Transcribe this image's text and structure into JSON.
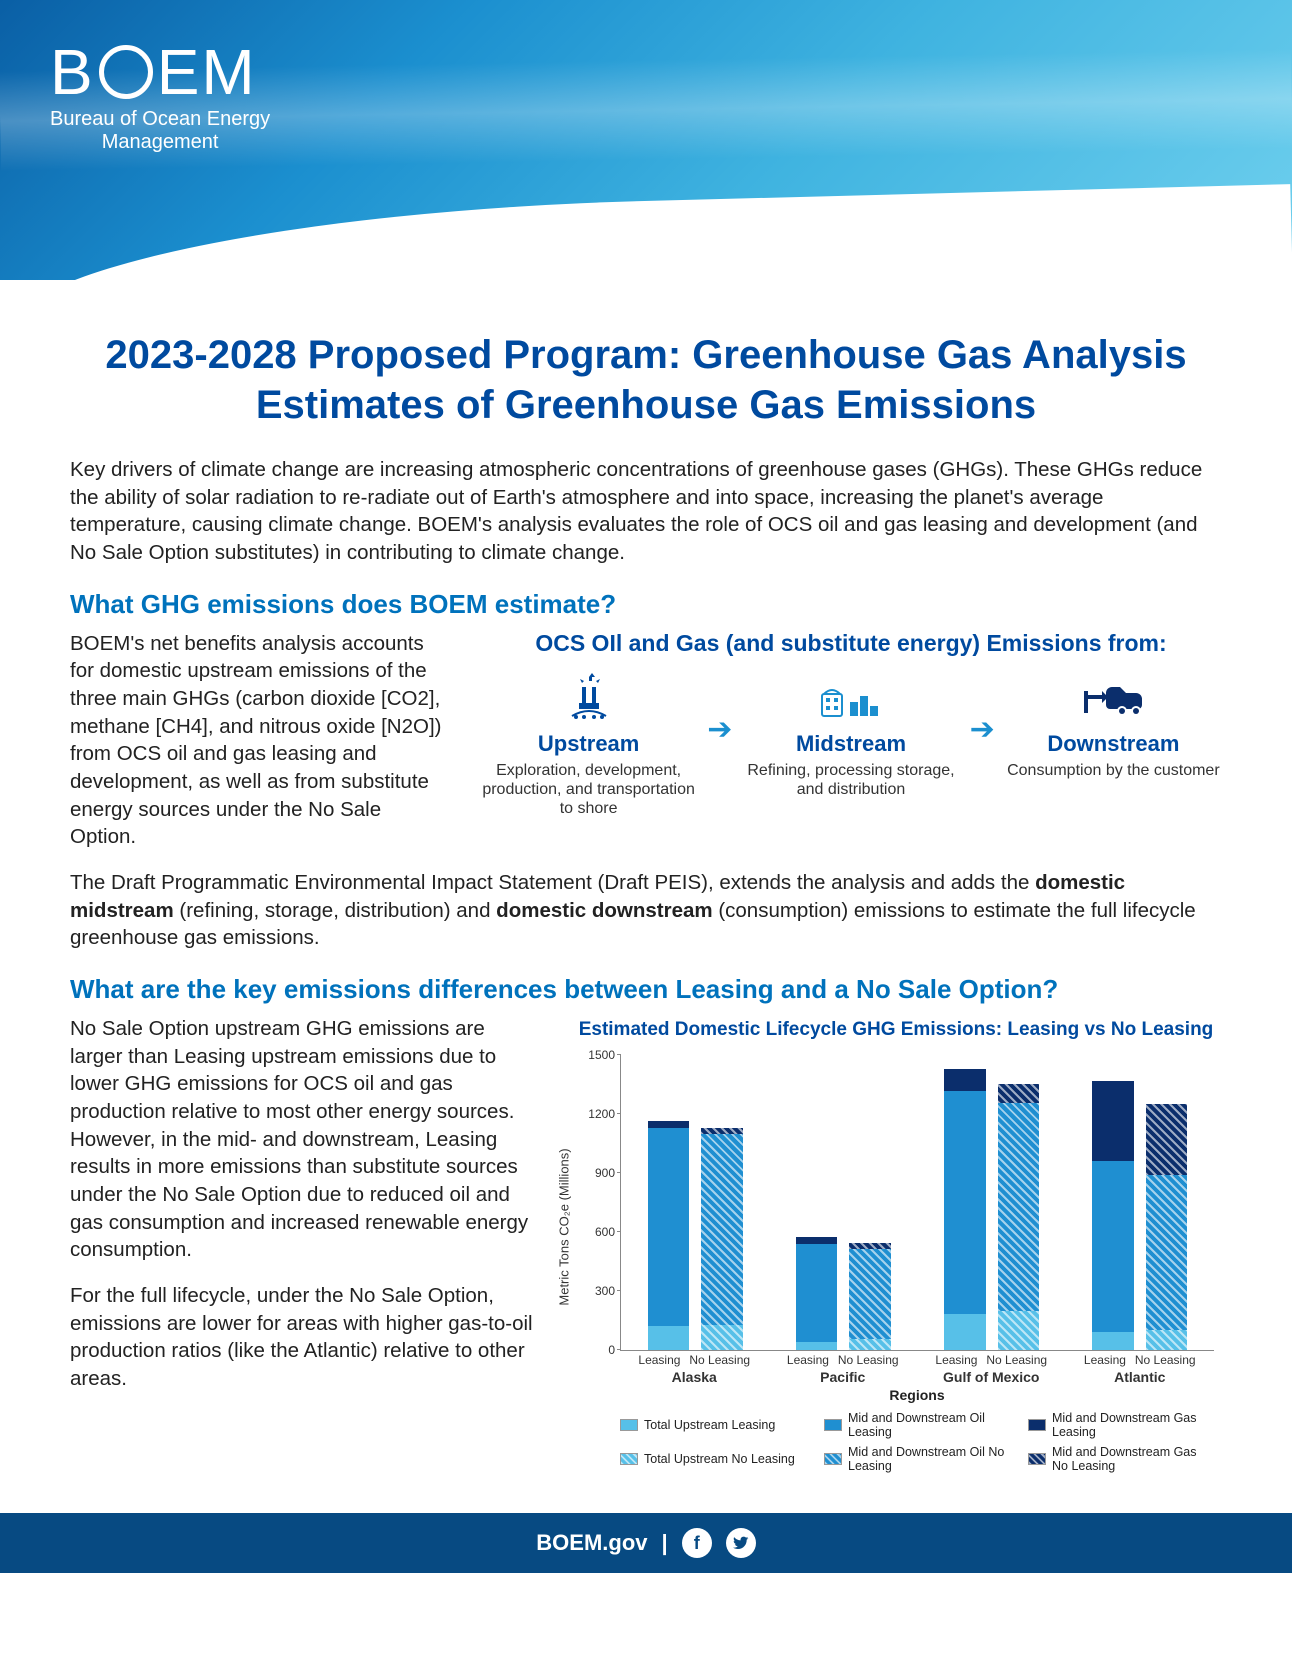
{
  "logo": {
    "line1_prefix": "B",
    "line1_suffix": "EM",
    "line2": "Bureau of Ocean Energy",
    "line3": "Management"
  },
  "title_line1": "2023-2028 Proposed Program: Greenhouse Gas Analysis",
  "title_line2": "Estimates of Greenhouse Gas Emissions",
  "intro": "Key drivers of climate change are increasing atmospheric concentrations of greenhouse gases (GHGs). These GHGs reduce the ability of solar radiation to re-radiate out of Earth's atmosphere and into space, increasing the planet's average temperature, causing climate change. BOEM's analysis evaluates the role of OCS oil and gas leasing and development (and No Sale Option substitutes) in contributing to climate change.",
  "s1": {
    "heading": "What GHG emissions does BOEM estimate?",
    "left_text": "BOEM's net benefits analysis accounts for domestic upstream emissions of the three main GHGs (carbon dioxide [CO2], methane [CH4], and nitrous oxide [N2O]) from OCS oil and gas leasing and development, as well as from substitute energy sources under the No Sale Option.",
    "flow": {
      "title": "OCS OIl and Gas (and substitute energy) Emissions from:",
      "nodes": [
        {
          "label": "Upstream",
          "desc": "Exploration, development, production, and transportation to shore",
          "icon_color": "#004a9f"
        },
        {
          "label": "Midstream",
          "desc": "Refining, processing storage, and distribution",
          "icon_color": "#1b8fcf"
        },
        {
          "label": "Downstream",
          "desc": "Consumption by the customer",
          "icon_color": "#0b2e6c"
        }
      ],
      "arrow_color": "#1b8fcf"
    },
    "after_para_pre": "The Draft Programmatic Environmental Impact Statement (Draft PEIS), extends the analysis and adds the ",
    "after_b1": "domestic midstream",
    "after_m1": " (refining, storage, distribution) and ",
    "after_b2": "domestic downstream",
    "after_m2": " (consumption) emissions to estimate the full lifecycle greenhouse gas emissions."
  },
  "s2": {
    "heading": "What are the key emissions differences between Leasing and a No Sale Option?",
    "p1": "No Sale Option upstream GHG emissions are larger than Leasing upstream emissions due to lower GHG emissions for OCS oil and gas production relative to most other energy sources. However, in the mid- and downstream, Leasing results in more emissions than substitute sources under the No Sale Option due to reduced oil and gas consumption and increased renewable energy consumption.",
    "p2": "For the full lifecycle, under the No Sale Option, emissions are lower for areas with higher gas-to-oil production ratios (like the Atlantic) relative to other areas."
  },
  "chart": {
    "type": "stacked-bar",
    "title": "Estimated Domestic Lifecycle GHG Emissions: Leasing vs No Leasing",
    "ylabel": "Metric Tons CO₂e (Millions)",
    "xaxis_title": "Regions",
    "ylim": [
      0,
      1500
    ],
    "ytick_step": 300,
    "yticks": [
      0,
      300,
      600,
      900,
      1200,
      1500
    ],
    "regions": [
      "Alaska",
      "Pacific",
      "Gulf of Mexico",
      "Atlantic"
    ],
    "sub_labels": [
      "Leasing",
      "No Leasing"
    ],
    "series_keys": [
      "upstream",
      "md_oil",
      "md_gas"
    ],
    "colors": {
      "upstream_leasing": "#57c0e8",
      "upstream_noleasing": "#57c0e8",
      "md_oil_leasing": "#1f8fd1",
      "md_oil_noleasing": "#1f8fd1",
      "md_gas_leasing": "#0b2e6c",
      "md_gas_noleasing": "#0b2e6c",
      "noleasing_hatch_overlay": "#ffffff"
    },
    "data": {
      "Alaska": {
        "leasing": {
          "upstream": 120,
          "md_oil": 1010,
          "md_gas": 35
        },
        "noleasing": {
          "upstream": 130,
          "md_oil": 970,
          "md_gas": 30
        }
      },
      "Pacific": {
        "leasing": {
          "upstream": 40,
          "md_oil": 500,
          "md_gas": 35
        },
        "noleasing": {
          "upstream": 55,
          "md_oil": 460,
          "md_gas": 30
        }
      },
      "Gulf of Mexico": {
        "leasing": {
          "upstream": 185,
          "md_oil": 1130,
          "md_gas": 115
        },
        "noleasing": {
          "upstream": 200,
          "md_oil": 1055,
          "md_gas": 100
        }
      },
      "Atlantic": {
        "leasing": {
          "upstream": 90,
          "md_oil": 870,
          "md_gas": 410
        },
        "noleasing": {
          "upstream": 100,
          "md_oil": 790,
          "md_gas": 360
        }
      }
    },
    "legend": [
      {
        "label": "Total Upstream Leasing",
        "key": "upstream_leasing"
      },
      {
        "label": "Mid and Downstream Oil Leasing",
        "key": "md_oil_leasing"
      },
      {
        "label": "Mid and Downstream Gas Leasing",
        "key": "md_gas_leasing"
      },
      {
        "label": "Total Upstream No Leasing",
        "key": "upstream_noleasing"
      },
      {
        "label": "Mid and Downstream Oil No Leasing",
        "key": "md_oil_noleasing"
      },
      {
        "label": "Mid and Downstream Gas No Leasing",
        "key": "md_gas_noleasing"
      }
    ],
    "bar_width_pct": 7,
    "group_gap_pct": 25,
    "inner_gap_pct": 2
  },
  "footer": {
    "site": "BOEM.gov",
    "sep": "|",
    "socials": [
      "f",
      "t"
    ]
  },
  "style": {
    "heading_color": "#0072bc",
    "title_color": "#004a9f",
    "body_font_size_pt": 15,
    "title_font_size_pt": 30
  }
}
